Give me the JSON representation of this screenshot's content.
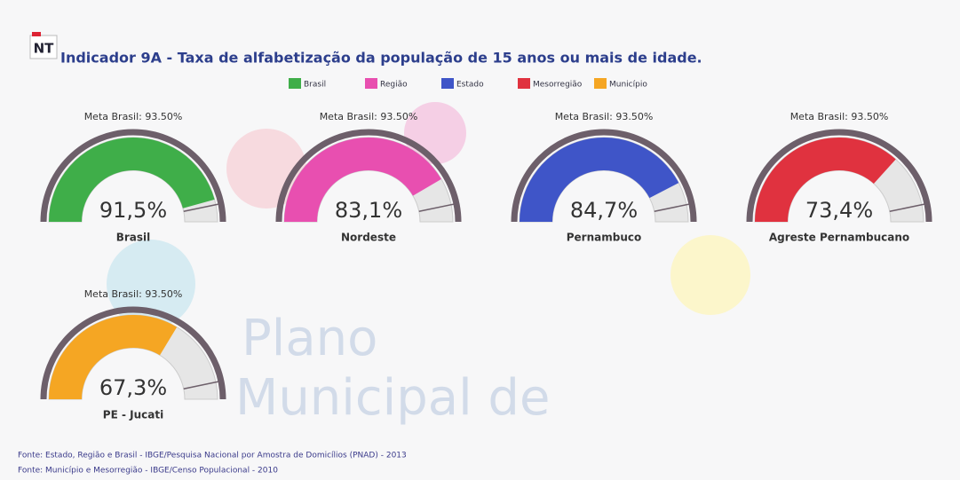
{
  "chart_data": {
    "type": "gauge",
    "logo": "NT",
    "title": "Indicador 9A - Taxa de alfabetização da população de 15 anos ou mais de idade.",
    "ylim": [
      0,
      100
    ],
    "target": 93.5,
    "target_label": "Meta Brasil: 93.50%",
    "series": [
      {
        "name": "Brasil",
        "color": "#3fae49",
        "label": "Brasil",
        "values": [
          91.5
        ],
        "value_labels": [
          "91,5%"
        ]
      },
      {
        "name": "Região",
        "color": "#e84fb0",
        "label": "Nordeste",
        "values": [
          83.1
        ],
        "value_labels": [
          "83,1%"
        ]
      },
      {
        "name": "Estado",
        "color": "#3f55c8",
        "label": "Pernambuco",
        "values": [
          84.7
        ],
        "value_labels": [
          "84,7%"
        ]
      },
      {
        "name": "Mesorregião",
        "color": "#e0323f",
        "label": "Agreste Pernambucano",
        "values": [
          73.4
        ],
        "value_labels": [
          "73,4%"
        ]
      },
      {
        "name": "Município",
        "color": "#f5a623",
        "label": "PE - Jucati",
        "values": [
          67.3
        ],
        "value_labels": [
          "67,3%"
        ]
      }
    ],
    "watermark": [
      "Plano",
      "Municipal de"
    ],
    "sources": [
      "Fonte: Estado, Região e Brasil - IBGE/Pesquisa Nacional por Amostra de Domicílios (PNAD) - 2013",
      "Fonte: Município e Mesorregião - IBGE/Censo Populacional - 2010"
    ]
  }
}
